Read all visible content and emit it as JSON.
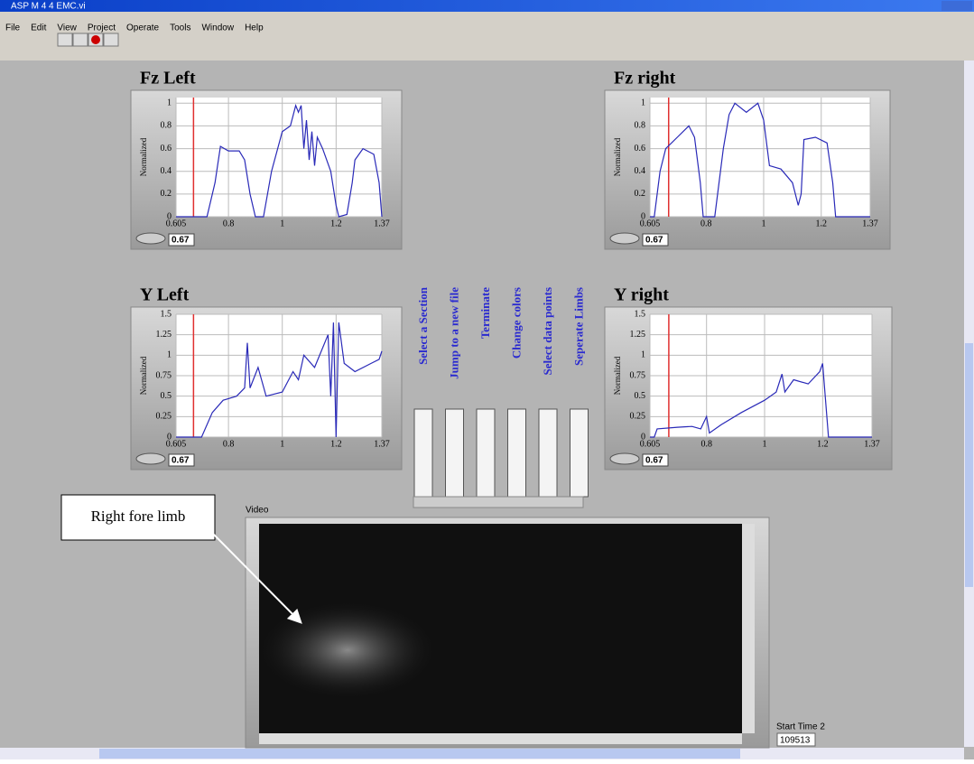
{
  "window_title": "ASP M 4 4 EMC.vi",
  "menu": [
    "File",
    "Edit",
    "View",
    "Project",
    "Operate",
    "Tools",
    "Window",
    "Help"
  ],
  "chart_data": [
    {
      "type": "line",
      "title": "Fz Left",
      "ylabel": "Normalized",
      "color": "#2a2ab8",
      "cursor_color": "#e03030",
      "cursor": 0.67,
      "grid": true,
      "xlim": [
        0.605,
        1.37
      ],
      "xticks": [
        0.605,
        0.8,
        1,
        1.2,
        1.37
      ],
      "ylim": [
        0,
        1.05
      ],
      "yticks": [
        0,
        0.2,
        0.4,
        0.6,
        0.8,
        1
      ],
      "x": [
        0.605,
        0.72,
        0.75,
        0.77,
        0.8,
        0.84,
        0.86,
        0.88,
        0.9,
        0.93,
        0.96,
        1.0,
        1.03,
        1.05,
        1.06,
        1.07,
        1.08,
        1.09,
        1.1,
        1.11,
        1.12,
        1.13,
        1.15,
        1.18,
        1.2,
        1.21,
        1.24,
        1.26,
        1.27,
        1.3,
        1.34,
        1.36,
        1.37
      ],
      "values": [
        0,
        0,
        0.3,
        0.62,
        0.58,
        0.58,
        0.5,
        0.2,
        0,
        0,
        0.4,
        0.75,
        0.8,
        0.98,
        0.92,
        0.98,
        0.6,
        0.85,
        0.5,
        0.75,
        0.45,
        0.7,
        0.6,
        0.4,
        0.1,
        0,
        0.02,
        0.3,
        0.5,
        0.6,
        0.55,
        0.3,
        0
      ]
    },
    {
      "type": "line",
      "title": "Fz right",
      "ylabel": "Normalized",
      "color": "#2a2ab8",
      "cursor_color": "#e03030",
      "cursor": 0.67,
      "grid": true,
      "xlim": [
        0.605,
        1.37
      ],
      "xticks": [
        0.605,
        0.8,
        1,
        1.2,
        1.37
      ],
      "ylim": [
        0,
        1.05
      ],
      "yticks": [
        0,
        0.2,
        0.4,
        0.6,
        0.8,
        1
      ],
      "x": [
        0.605,
        0.62,
        0.64,
        0.66,
        0.7,
        0.74,
        0.76,
        0.78,
        0.79,
        0.83,
        0.86,
        0.88,
        0.9,
        0.94,
        0.98,
        1.0,
        1.02,
        1.06,
        1.1,
        1.12,
        1.13,
        1.14,
        1.18,
        1.22,
        1.24,
        1.25,
        1.37
      ],
      "values": [
        0,
        0,
        0.4,
        0.6,
        0.7,
        0.8,
        0.7,
        0.3,
        0,
        0,
        0.6,
        0.9,
        1.0,
        0.92,
        1.0,
        0.85,
        0.45,
        0.42,
        0.3,
        0.1,
        0.2,
        0.68,
        0.7,
        0.65,
        0.3,
        0,
        0
      ]
    },
    {
      "type": "line",
      "title": "Y Left",
      "ylabel": "Normalized",
      "color": "#2a2ab8",
      "cursor_color": "#e03030",
      "cursor": 0.67,
      "grid": true,
      "xlim": [
        0.605,
        1.37
      ],
      "xticks": [
        0.605,
        0.8,
        1,
        1.2,
        1.37
      ],
      "ylim": [
        0,
        1.5
      ],
      "yticks": [
        0,
        0.25,
        0.5,
        0.75,
        1,
        1.25,
        1.5
      ],
      "x": [
        0.605,
        0.7,
        0.74,
        0.78,
        0.83,
        0.86,
        0.87,
        0.88,
        0.91,
        0.94,
        1.0,
        1.04,
        1.06,
        1.08,
        1.12,
        1.17,
        1.18,
        1.19,
        1.2,
        1.21,
        1.23,
        1.27,
        1.33,
        1.36,
        1.37
      ],
      "values": [
        0,
        0,
        0.3,
        0.45,
        0.5,
        0.6,
        1.15,
        0.6,
        0.85,
        0.5,
        0.55,
        0.8,
        0.7,
        1.0,
        0.85,
        1.25,
        0.5,
        1.4,
        0,
        1.4,
        0.9,
        0.8,
        0.9,
        0.95,
        1.05
      ]
    },
    {
      "type": "line",
      "title": "Y right",
      "ylabel": "Normalized",
      "color": "#2a2ab8",
      "cursor_color": "#e03030",
      "cursor": 0.67,
      "grid": true,
      "xlim": [
        0.605,
        1.37
      ],
      "xticks": [
        0.605,
        0.8,
        1,
        1.2,
        1.37
      ],
      "ylim": [
        0,
        1.5
      ],
      "yticks": [
        0,
        0.25,
        0.5,
        0.75,
        1,
        1.25,
        1.5
      ],
      "x": [
        0.605,
        0.62,
        0.63,
        0.7,
        0.75,
        0.78,
        0.8,
        0.81,
        0.85,
        0.92,
        1.0,
        1.04,
        1.06,
        1.07,
        1.1,
        1.15,
        1.19,
        1.2,
        1.22,
        1.37
      ],
      "values": [
        0,
        0,
        0.1,
        0.12,
        0.13,
        0.1,
        0.25,
        0.05,
        0.15,
        0.3,
        0.45,
        0.55,
        0.77,
        0.55,
        0.7,
        0.65,
        0.8,
        0.9,
        0,
        0
      ]
    }
  ],
  "buttons": [
    "Select a Section",
    "Jump to a new file",
    "Terminate",
    "Change colors",
    "Select data points",
    "Seperate Limbs"
  ],
  "video_label": "Video",
  "annotation": "Right fore limb",
  "start_time": {
    "label": "Start Time 2",
    "value": "109513"
  }
}
